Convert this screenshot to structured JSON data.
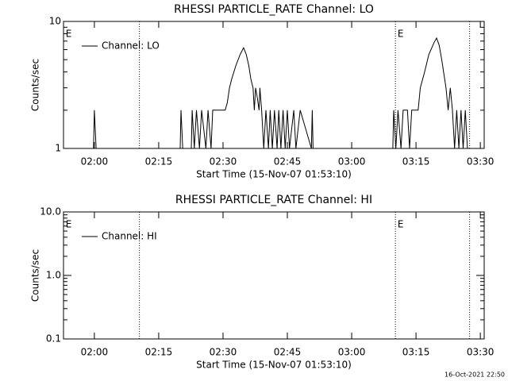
{
  "chart_data": [
    {
      "type": "line",
      "title": "RHESSI PARTICLE_RATE Channel: LO",
      "xlabel": "Start Time (15-Nov-07 01:53:10)",
      "ylabel": "Counts/sec",
      "log_y": true,
      "ylim": [
        1,
        10
      ],
      "yticks": [
        1,
        10
      ],
      "xlim": [
        112.8,
        210.9
      ],
      "xticks": [
        {
          "value": 120,
          "label": "02:00"
        },
        {
          "value": 135,
          "label": "02:15"
        },
        {
          "value": 150,
          "label": "02:30"
        },
        {
          "value": 165,
          "label": "02:45"
        },
        {
          "value": 180,
          "label": "03:00"
        },
        {
          "value": 195,
          "label": "03:15"
        },
        {
          "value": 210,
          "label": "03:30"
        }
      ],
      "markers": [
        130.5,
        190.2,
        207.5
      ],
      "annotations": [
        {
          "text": "E",
          "x": 113.3
        },
        {
          "text": "E",
          "x": 190.7
        }
      ],
      "legend": "upper left",
      "series": [
        {
          "name": "Channel: LO",
          "color": "#000000",
          "x": [
            112.8,
            119.8,
            120,
            120.4,
            140,
            140.2,
            140.6,
            142.6,
            142.8,
            143.3,
            143.8,
            144.5,
            145,
            146,
            146.5,
            147.2,
            147.6,
            149,
            150.5,
            151,
            151.5,
            152,
            153,
            154,
            154.8,
            155.4,
            156,
            156.5,
            157,
            157.3,
            157.6,
            158,
            158.4,
            158.6,
            159,
            159.5,
            160,
            160.6,
            161,
            161.5,
            162,
            162.6,
            163,
            163.5,
            164,
            164.5,
            165,
            165.5,
            166.5,
            167,
            168,
            170.6,
            170.8,
            171,
            189.6,
            189.8,
            190.3,
            190.8,
            191.5,
            192,
            193,
            193.5,
            194,
            195.5,
            196,
            197,
            198,
            199.2,
            199.8,
            200.4,
            201,
            202,
            202.5,
            203,
            203.5,
            204,
            204.5,
            205,
            205.5,
            206,
            206.5,
            207,
            210.9
          ],
          "values": [
            1,
            1,
            2,
            1,
            1,
            2,
            1,
            1,
            2,
            1,
            2,
            1,
            2,
            1,
            2,
            1,
            2,
            2,
            2,
            2.3,
            3,
            3.5,
            4.5,
            5.5,
            6.2,
            5.5,
            4.5,
            3.5,
            3,
            2,
            3,
            2.5,
            2,
            3,
            2,
            1,
            2,
            1,
            2,
            1,
            2,
            1,
            2,
            1,
            2,
            1,
            2,
            1,
            2,
            1,
            2,
            1,
            2,
            1,
            1,
            2,
            1,
            2,
            1,
            2,
            2,
            1,
            2,
            2,
            3,
            4,
            5.5,
            6.8,
            7.4,
            6.5,
            5,
            3,
            2,
            3,
            2,
            1,
            2,
            1,
            2,
            1,
            2,
            1,
            1
          ]
        }
      ]
    },
    {
      "type": "line",
      "title": "RHESSI PARTICLE_RATE Channel: HI",
      "xlabel": "Start Time (15-Nov-07 01:53:10)",
      "ylabel": "Counts/sec",
      "log_y": true,
      "ylim": [
        0.1,
        10
      ],
      "yticks": [
        0.1,
        {
          "value": 1,
          "label": "1.0"
        },
        {
          "value": 10,
          "label": "10.0"
        }
      ],
      "xlim": [
        112.8,
        210.9
      ],
      "xticks": [
        {
          "value": 120,
          "label": "02:00"
        },
        {
          "value": 135,
          "label": "02:15"
        },
        {
          "value": 150,
          "label": "02:30"
        },
        {
          "value": 165,
          "label": "02:45"
        },
        {
          "value": 180,
          "label": "03:00"
        },
        {
          "value": 195,
          "label": "03:15"
        },
        {
          "value": 210,
          "label": "03:30"
        }
      ],
      "markers": [
        130.5,
        190.2,
        207.5
      ],
      "annotations": [
        {
          "text": "E",
          "x": 113.3
        },
        {
          "text": "E",
          "x": 190.7
        }
      ],
      "legend": "upper left",
      "series": [
        {
          "name": "Channel: HI",
          "color": "#000000",
          "x": [],
          "values": []
        }
      ]
    }
  ],
  "footer": "16-Oct-2021 22:50"
}
